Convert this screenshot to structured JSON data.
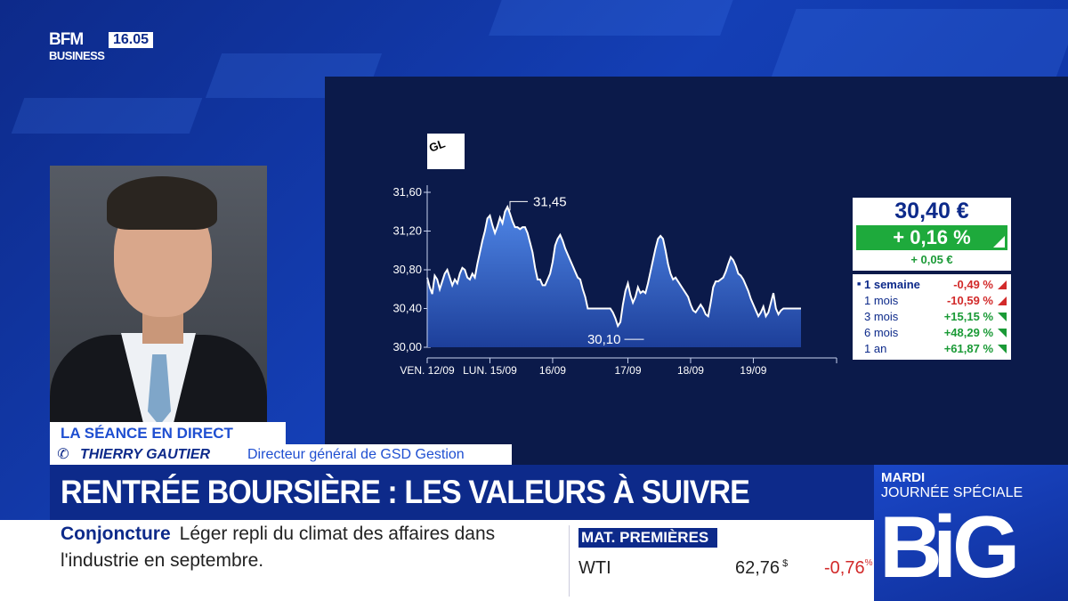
{
  "channel": {
    "name": "BFM",
    "sub": "BUSINESS",
    "time": "16.05"
  },
  "company_logo_text": "GL",
  "chart_data": {
    "type": "area",
    "ylim": [
      30.0,
      31.6
    ],
    "yticks": [
      "31,60",
      "31,20",
      "30,80",
      "30,40",
      "30,00"
    ],
    "ytick_values": [
      31.6,
      31.2,
      30.8,
      30.4,
      30.0
    ],
    "xticks": [
      "VEN. 12/09",
      "LUN. 15/09",
      "16/09",
      "17/09",
      "18/09",
      "19/09"
    ],
    "x_count": 150,
    "xtick_index": [
      0,
      25,
      50,
      80,
      105,
      130
    ],
    "annotations": [
      {
        "label": "31,45",
        "index": 33,
        "value": 31.45
      },
      {
        "label": "30,10",
        "index": 80,
        "value": 30.1
      }
    ],
    "values": [
      30.72,
      30.62,
      30.55,
      30.74,
      30.7,
      30.6,
      30.68,
      30.76,
      30.8,
      30.72,
      30.64,
      30.7,
      30.66,
      30.76,
      30.82,
      30.8,
      30.72,
      30.7,
      30.76,
      30.72,
      30.86,
      30.98,
      31.1,
      31.2,
      31.33,
      31.36,
      31.26,
      31.18,
      31.25,
      31.34,
      31.28,
      31.4,
      31.45,
      31.38,
      31.3,
      31.24,
      31.24,
      31.22,
      31.24,
      31.24,
      31.18,
      31.08,
      30.98,
      30.82,
      30.7,
      30.7,
      30.64,
      30.64,
      30.7,
      30.76,
      30.88,
      31.05,
      31.12,
      31.16,
      31.1,
      31.02,
      30.96,
      30.9,
      30.84,
      30.78,
      30.72,
      30.7,
      30.6,
      30.52,
      30.4,
      30.4,
      30.4,
      30.4,
      30.4,
      30.4,
      30.4,
      30.4,
      30.4,
      30.4,
      30.36,
      30.3,
      30.22,
      30.26,
      30.44,
      30.58,
      30.66,
      30.54,
      30.46,
      30.52,
      30.62,
      30.56,
      30.58,
      30.56,
      30.66,
      30.78,
      30.9,
      31.02,
      31.12,
      31.15,
      31.12,
      31.0,
      30.86,
      30.76,
      30.7,
      30.72,
      30.68,
      30.64,
      30.6,
      30.56,
      30.52,
      30.44,
      30.38,
      30.36,
      30.4,
      30.44,
      30.4,
      30.34,
      30.32,
      30.46,
      30.62,
      30.68,
      30.68,
      30.7,
      30.72,
      30.78,
      30.86,
      30.93,
      30.9,
      30.84,
      30.76,
      30.74,
      30.7,
      30.64,
      30.58,
      30.5,
      30.44,
      30.38,
      30.32,
      30.36,
      30.42,
      30.32,
      30.36,
      30.46,
      30.56,
      30.4,
      30.34,
      30.38,
      30.4,
      30.4,
      30.4,
      30.4,
      30.4,
      30.4,
      30.4,
      30.4
    ]
  },
  "quote": {
    "price": "30,40 €",
    "change_pct": "+ 0,16 %",
    "change_abs": "+ 0,05 €"
  },
  "performance": [
    {
      "label": "1 semaine",
      "value": "-0,49 %",
      "dir": "down",
      "active": true
    },
    {
      "label": "1 mois",
      "value": "-10,59 %",
      "dir": "down",
      "active": false
    },
    {
      "label": "3 mois",
      "value": "+15,15 %",
      "dir": "up",
      "active": false
    },
    {
      "label": "6 mois",
      "value": "+48,29 %",
      "dir": "up",
      "active": false
    },
    {
      "label": "1 an",
      "value": "+61,87 %",
      "dir": "up",
      "active": false
    }
  ],
  "lower_third": {
    "program": "LA SÉANCE EN DIRECT",
    "guest_name": "THIERRY GAUTIER",
    "guest_role": "Directeur général de GSD Gestion",
    "headline": "RENTRÉE BOURSIÈRE : LES VALEURS À SUIVRE"
  },
  "ticker": {
    "tag": "Conjoncture",
    "text": "Léger repli du climat des affaires dans l'industrie en septembre.",
    "mat_title": "MAT. PREMIÈRES",
    "mat_name": "WTI",
    "mat_price": "62,76",
    "mat_unit": "$",
    "mat_change": "-0,76",
    "mat_change_unit": "%"
  },
  "promo": {
    "day": "MARDI",
    "title": "JOURNÉE SPÉCIALE",
    "brand": [
      "B",
      "i",
      "G"
    ]
  },
  "colors": {
    "navy": "#0d2a8a",
    "up": "#1eaa3c",
    "down": "#d22a2a"
  }
}
